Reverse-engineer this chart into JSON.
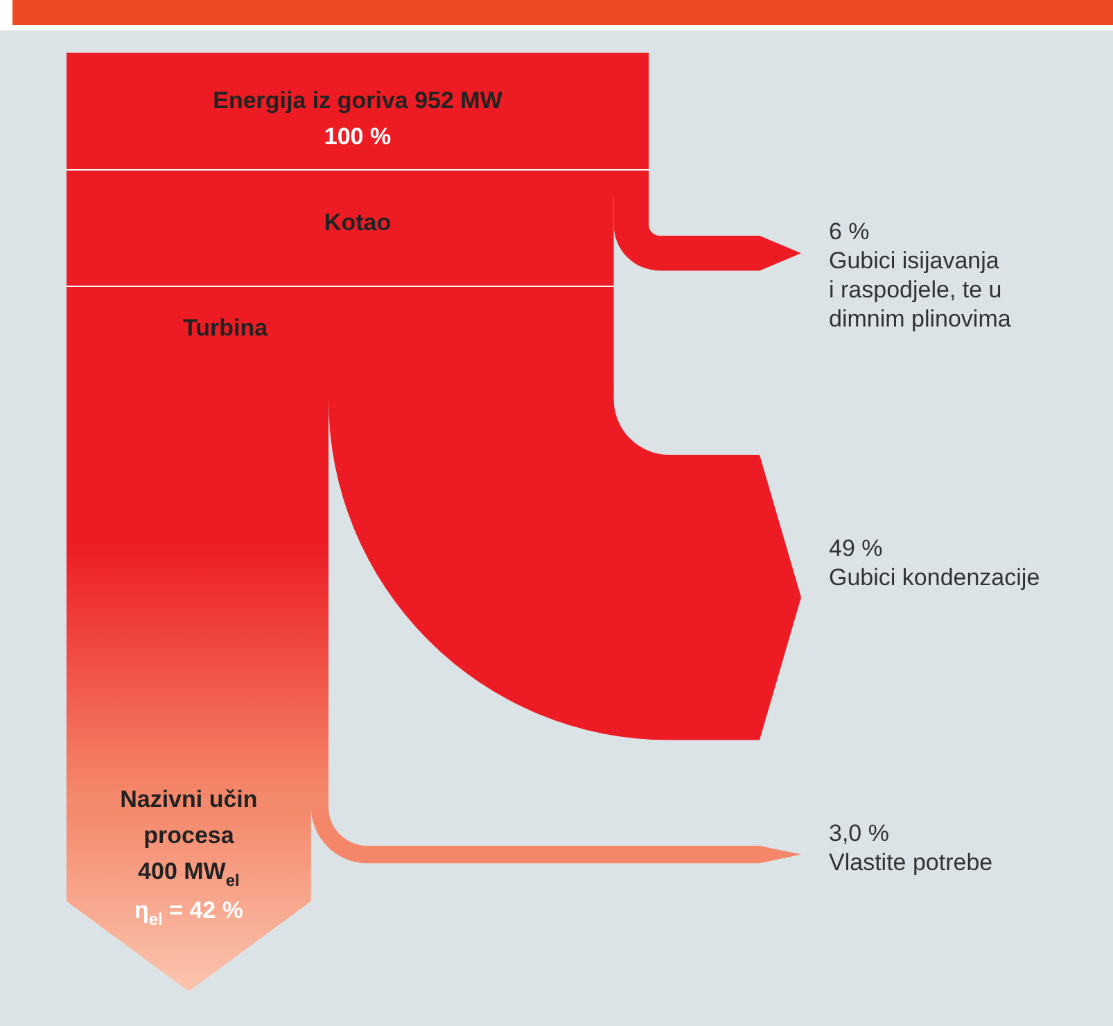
{
  "chart_data": {
    "type": "other",
    "categories": [
      "Gubici isijavanja\ni raspodjele, te u\ndimnim plinovima",
      "Gubici kondenzacije",
      "Vlastite potrebe",
      "Nazivni učin\nprocesa\n400 MW$_{el}$"
    ],
    "values": [
      6,
      49,
      3.0,
      42
    ],
    "value_labels": [
      "6 %",
      "49 %",
      "3,0 %",
      "η$_{el}$ = 42 %"
    ],
    "colors": [
      "#ed1c24",
      "#ed1c24",
      "#f4876a",
      "#f4876a"
    ],
    "annotations": [
      "Energija iz goriva 952 MW",
      "100 %",
      "Kotao",
      "Turbina"
    ]
  }
}
